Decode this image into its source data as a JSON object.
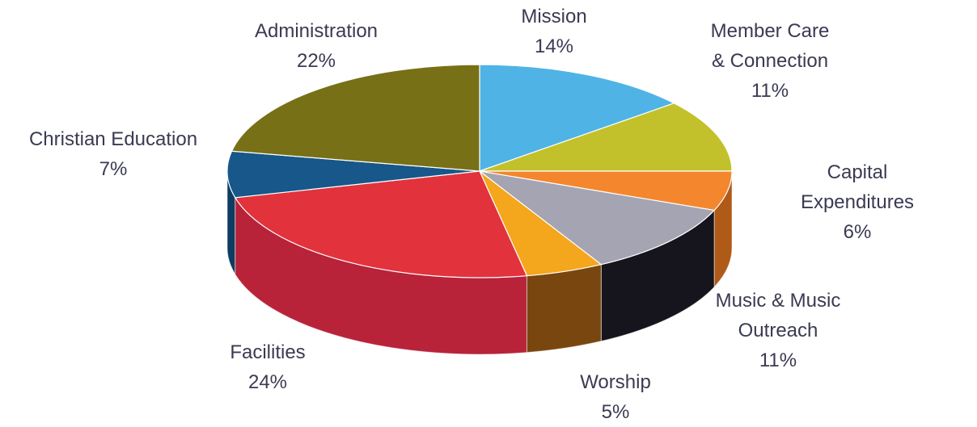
{
  "chart_data": {
    "type": "pie",
    "title": "",
    "style": "3d",
    "slices": [
      {
        "label": "Mission",
        "value": 14,
        "display_value": "14%",
        "color": "#4fb3e6",
        "side_color": "#3a8fbf"
      },
      {
        "label": "Member Care\n& Connection",
        "value": 11,
        "display_value": "11%",
        "color": "#c3c12b",
        "side_color": "#8f8c18"
      },
      {
        "label": "Capital Expenditures",
        "value": 6,
        "display_value": "6%",
        "color": "#f4862e",
        "side_color": "#b05a18"
      },
      {
        "label": "Music & Music\nOutreach",
        "value": 11,
        "display_value": "11%",
        "color": "#a4a4b2",
        "side_color": "#16141c"
      },
      {
        "label": "Worship",
        "value": 5,
        "display_value": "5%",
        "color": "#f4a61c",
        "side_color": "#7a4610"
      },
      {
        "label": "Facilities",
        "value": 24,
        "display_value": "24%",
        "color": "#e2323c",
        "side_color": "#b8233a"
      },
      {
        "label": "Christian Education",
        "value": 7,
        "display_value": "7%",
        "color": "#17578a",
        "side_color": "#0e3c62"
      },
      {
        "label": "Administration",
        "value": 22,
        "display_value": "22%",
        "color": "#777016",
        "side_color": "#535010"
      }
    ]
  }
}
